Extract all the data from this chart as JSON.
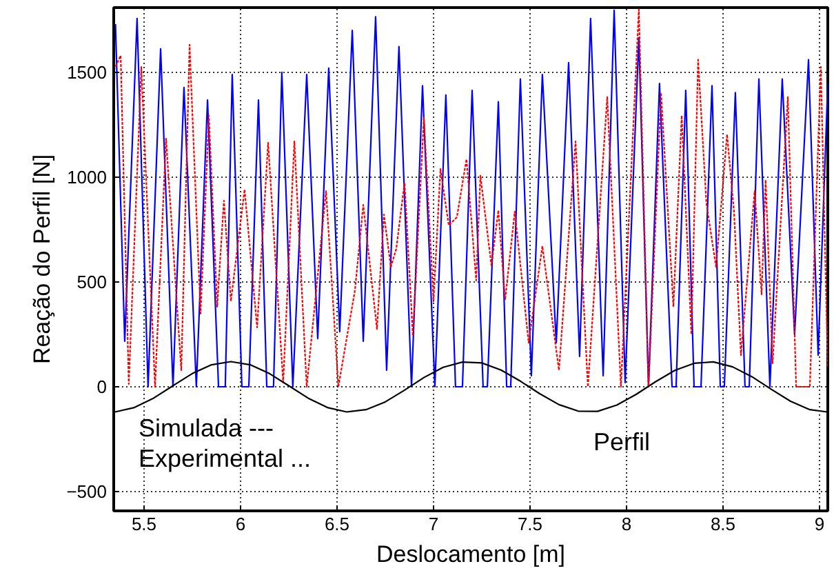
{
  "chart_data": {
    "type": "line",
    "xlabel": "Deslocamento [m]",
    "ylabel": "Reação do Perfil [N]",
    "xlim": [
      5.343,
      9.043
    ],
    "ylim": [
      -592,
      1809
    ],
    "xticks": [
      5.5,
      6,
      6.5,
      7,
      7.5,
      8,
      8.5,
      9
    ],
    "yticks": [
      -500,
      0,
      500,
      1000,
      1500
    ],
    "grid": true,
    "annotations": [
      "Simulada ---",
      "Experimental ..."
    ],
    "series": [
      {
        "color": "#0000ff",
        "line_style": "solid",
        "x": [
          5.352,
          5.4,
          5.464,
          5.521,
          5.586,
          5.65,
          5.707,
          5.771,
          5.829,
          5.886,
          5.921,
          5.957,
          6.007,
          6.043,
          6.093,
          6.136,
          6.171,
          6.214,
          6.271,
          6.343,
          6.4,
          6.457,
          6.514,
          6.579,
          6.636,
          6.7,
          6.757,
          6.821,
          6.886,
          6.943,
          7.007,
          7.064,
          7.114,
          7.15,
          7.2,
          7.257,
          7.279,
          7.336,
          7.379,
          7.4,
          7.45,
          7.507,
          7.564,
          7.636,
          7.7,
          7.757,
          7.814,
          7.879,
          7.936,
          7.993,
          8.064,
          8.114,
          8.171,
          8.236,
          8.257,
          8.307,
          8.35,
          8.386,
          8.443,
          8.486,
          8.507,
          8.564,
          8.614,
          8.636,
          8.686,
          8.743,
          8.807,
          8.871,
          8.943,
          8.993,
          9.043
        ],
        "values": [
          1730,
          217,
          1757,
          0,
          1612,
          0,
          1428,
          0,
          1368,
          0,
          0,
          1490,
          0,
          0,
          1368,
          0,
          0,
          1500,
          0,
          1490,
          230,
          1520,
          263,
          1700,
          217,
          1765,
          79,
          1623,
          0,
          1436,
          0,
          1392,
          0,
          0,
          1414,
          0,
          0,
          1360,
          0,
          0,
          1468,
          53,
          1490,
          210,
          1546,
          145,
          1757,
          53,
          1796,
          20,
          1665,
          0,
          1447,
          0,
          0,
          1414,
          0,
          0,
          1436,
          0,
          0,
          1403,
          0,
          0,
          1468,
          0,
          1468,
          250,
          1560,
          151,
          1447
        ]
      },
      {
        "color": "#ff0000",
        "line_style": "dotted",
        "x": [
          5.343,
          5.379,
          5.421,
          5.486,
          5.557,
          5.614,
          5.693,
          5.736,
          5.793,
          5.836,
          5.879,
          5.914,
          5.95,
          6.021,
          6.086,
          6.143,
          6.221,
          6.279,
          6.343,
          6.443,
          6.507,
          6.593,
          6.636,
          6.707,
          6.743,
          6.779,
          6.807,
          6.85,
          6.893,
          6.95,
          7.0,
          7.036,
          7.079,
          7.121,
          7.171,
          7.221,
          7.243,
          7.3,
          7.336,
          7.371,
          7.421,
          7.493,
          7.564,
          7.65,
          7.736,
          7.8,
          7.9,
          7.971,
          8.064,
          8.114,
          8.179,
          8.243,
          8.286,
          8.336,
          8.371,
          8.414,
          8.464,
          8.521,
          8.557,
          8.593,
          8.664,
          8.7,
          8.721,
          8.757,
          8.836,
          8.879,
          8.95,
          9.007,
          9.043
        ],
        "values": [
          1510,
          1580,
          13,
          1526,
          0,
          1184,
          79,
          1632,
          349,
          1294,
          382,
          888,
          408,
          941,
          283,
          1164,
          20,
          1171,
          0,
          934,
          0,
          461,
          868,
          276,
          822,
          572,
          658,
          974,
          243,
          1283,
          408,
          1039,
          770,
          809,
          1086,
          507,
          1007,
          579,
          842,
          414,
          836,
          210,
          671,
          79,
          1171,
          0,
          1382,
          0,
          1800,
          0,
          1403,
          382,
          1294,
          250,
          1560,
          875,
          572,
          1204,
          836,
          151,
          934,
          441,
          987,
          112,
          1382,
          0,
          0,
          1526,
          92
        ]
      },
      {
        "name": "Perfil",
        "color": "#000000",
        "line_style": "solid",
        "x": [
          5.35,
          5.45,
          5.55,
          5.65,
          5.75,
          5.85,
          5.95,
          6.05,
          6.15,
          6.25,
          6.35,
          6.45,
          6.55,
          6.65,
          6.75,
          6.85,
          6.95,
          7.05,
          7.15,
          7.25,
          7.35,
          7.45,
          7.55,
          7.65,
          7.75,
          7.85,
          7.95,
          8.05,
          8.15,
          8.25,
          8.35,
          8.45,
          8.55,
          8.65,
          8.75,
          8.85,
          8.95,
          9.04
        ],
        "values": [
          -120,
          -99,
          -54,
          5,
          63,
          105,
          120,
          105,
          63,
          5,
          -54,
          -99,
          -120,
          -109,
          -72,
          -16,
          44,
          93,
          118,
          114,
          80,
          27,
          -33,
          -85,
          -116,
          -117,
          -87,
          -36,
          24,
          78,
          112,
          119,
          95,
          48,
          -12,
          -69,
          -109,
          -120
        ]
      }
    ]
  }
}
